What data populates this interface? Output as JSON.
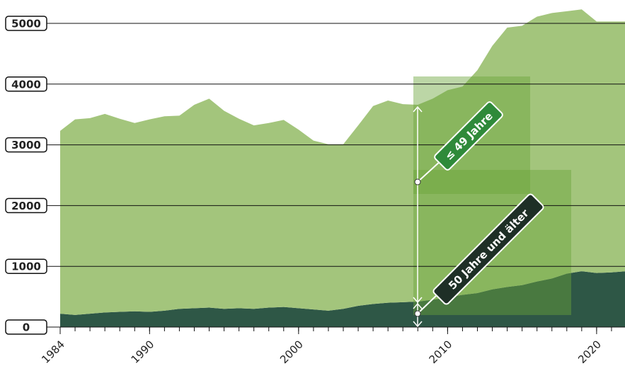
{
  "chart_data": {
    "type": "stacked-area",
    "x": [
      1984,
      1985,
      1986,
      1987,
      1988,
      1989,
      1990,
      1991,
      1992,
      1993,
      1994,
      1995,
      1996,
      1997,
      1998,
      1999,
      2000,
      2001,
      2002,
      2003,
      2004,
      2005,
      2006,
      2007,
      2008,
      2009,
      2010,
      2011,
      2012,
      2013,
      2014,
      2015,
      2016,
      2017,
      2018,
      2019,
      2020,
      2021,
      2022
    ],
    "series": [
      {
        "name": "50 Jahre und älter",
        "color": "#2e5746",
        "values": [
          220,
          200,
          220,
          240,
          250,
          260,
          250,
          270,
          300,
          310,
          320,
          300,
          310,
          300,
          320,
          330,
          310,
          290,
          270,
          300,
          350,
          380,
          400,
          410,
          420,
          450,
          490,
          530,
          560,
          620,
          660,
          690,
          750,
          800,
          880,
          920,
          890,
          900,
          920
        ]
      },
      {
        "name": "≤ 49 Jahre",
        "color": "#a3c57c",
        "values": [
          3010,
          3220,
          3220,
          3270,
          3180,
          3100,
          3170,
          3200,
          3180,
          3350,
          3440,
          3260,
          3120,
          3020,
          3040,
          3080,
          2940,
          2780,
          2740,
          2710,
          2970,
          3260,
          3330,
          3260,
          3240,
          3310,
          3410,
          3430,
          3670,
          4010,
          4270,
          4270,
          4360,
          4370,
          4320,
          4310,
          4140,
          4130,
          4110
        ]
      }
    ],
    "xlim": [
      1984,
      2022
    ],
    "xticks": [
      1984,
      1990,
      2000,
      2010,
      2020
    ],
    "ylim": [
      0,
      5000
    ],
    "yticks": [
      0,
      1000,
      2000,
      3000,
      4000,
      5000
    ],
    "grid": true
  }
}
